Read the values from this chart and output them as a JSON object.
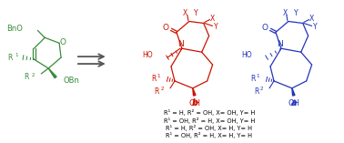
{
  "bg_color": "#ffffff",
  "green_color": "#3a8a3a",
  "red_color": "#cc1100",
  "blue_color": "#2233bb",
  "arrow_color": "#555555",
  "text_color": "#000000",
  "figsize": [
    3.78,
    1.57
  ],
  "dpi": 100,
  "r_lines": [
    "R¹ = H, R² = OH, X= OH, Y= H",
    "R¹ = OH, R² = H, X= OH, Y= H",
    "R¹ = H, R² = OH, X= H, Y= H",
    "R¹ = OH, R² = H, X= H, Y= H"
  ]
}
